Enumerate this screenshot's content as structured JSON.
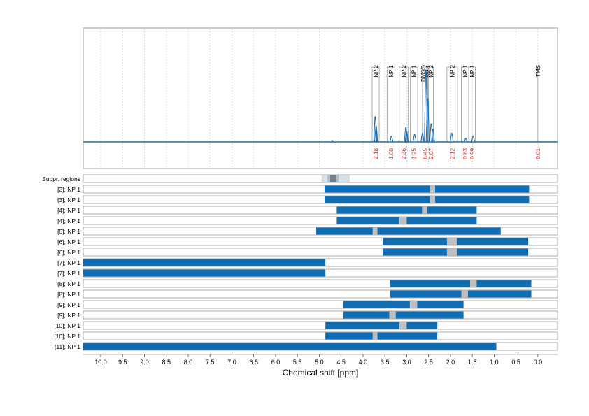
{
  "chart_data": {
    "type": "nmr-spectrum-with-range-bars",
    "xlabel": "Chemical shift [ppm]",
    "x_range": [
      10.4,
      -0.45
    ],
    "x_reversed": true,
    "x_ticks": [
      "10.0",
      "9.5",
      "9.0",
      "8.5",
      "8.0",
      "7.5",
      "7.0",
      "6.5",
      "6.0",
      "5.5",
      "5.0",
      "4.5",
      "4.0",
      "3.5",
      "3.0",
      "2.5",
      "2.0",
      "1.5",
      "1.0",
      "0.5",
      "0.0"
    ],
    "grid": "dotted vertical",
    "colors": {
      "spectrum": "#1f6fb4",
      "bar": "#0e6db3",
      "gap": "#c0c0c0",
      "integral": "#e0201b",
      "suppr": "#d6e0ea",
      "suppr_dark": "#6f7f8c"
    },
    "spectrum_peaks": [
      {
        "ppm": 3.72,
        "h": 0.35
      },
      {
        "ppm": 3.7,
        "h": 0.22
      },
      {
        "ppm": 3.35,
        "h": 0.08
      },
      {
        "ppm": 3.02,
        "h": 0.2
      },
      {
        "ppm": 3.0,
        "h": 0.14
      },
      {
        "ppm": 2.82,
        "h": 0.1
      },
      {
        "ppm": 2.64,
        "h": 0.12
      },
      {
        "ppm": 2.56,
        "h": 1.0
      },
      {
        "ppm": 2.52,
        "h": 0.6
      },
      {
        "ppm": 2.44,
        "h": 0.25
      },
      {
        "ppm": 2.4,
        "h": 0.18
      },
      {
        "ppm": 1.97,
        "h": 0.12
      },
      {
        "ppm": 1.65,
        "h": 0.05
      },
      {
        "ppm": 1.48,
        "h": 0.08
      },
      {
        "ppm": 4.7,
        "h": 0.02
      }
    ],
    "regions": [
      {
        "label": "NP 2",
        "from": 3.79,
        "to": 3.63,
        "integral": "2.18"
      },
      {
        "label": "NP 1",
        "from": 3.45,
        "to": 3.27,
        "integral": "1.00"
      },
      {
        "label": "NP 2",
        "from": 3.17,
        "to": 2.97,
        "integral": "2.36"
      },
      {
        "label": "NP 1",
        "from": 2.92,
        "to": 2.75,
        "integral": "1.25"
      },
      {
        "label": "DMSO",
        "from": 2.64,
        "to": 2.52,
        "integral": "6.45"
      },
      {
        "label": "NP 1",
        "from": 2.64,
        "to": 2.52,
        "integral": ""
      },
      {
        "label": "NP 2",
        "from": 2.5,
        "to": 2.39,
        "integral": "2.07"
      },
      {
        "label": "NP 2",
        "from": 2.08,
        "to": 1.84,
        "integral": "2.12"
      },
      {
        "label": "NP 1",
        "from": 1.75,
        "to": 1.58,
        "integral": "0.83"
      },
      {
        "label": "NP 1",
        "from": 1.58,
        "to": 1.43,
        "integral": "0.99"
      },
      {
        "label": "TMS",
        "from": 0.02,
        "to": -0.02,
        "integral": "0.01"
      }
    ],
    "suppr_regions": {
      "label": "Suppr. regions",
      "from": 4.95,
      "to": 4.3,
      "dark_from": 4.75,
      "dark_to": 4.62
    },
    "range_rows": [
      {
        "label": "[3]; NP 1",
        "start": 4.88,
        "end": 0.2,
        "gap": [
          2.47,
          2.35
        ]
      },
      {
        "label": "[3]; NP 1",
        "start": 4.88,
        "end": 0.2,
        "gap": [
          2.47,
          2.35
        ]
      },
      {
        "label": "[4]; NP 1",
        "start": 4.6,
        "end": 1.4,
        "gap": [
          2.65,
          2.53
        ]
      },
      {
        "label": "[4]; NP 1",
        "start": 4.6,
        "end": 1.4,
        "gap": [
          3.17,
          3.0
        ]
      },
      {
        "label": "[5]; NP 1",
        "start": 5.07,
        "end": 0.85,
        "gap": [
          3.78,
          3.67
        ]
      },
      {
        "label": "[6]; NP 1",
        "start": 3.55,
        "end": 0.22,
        "gap": [
          2.08,
          1.85
        ]
      },
      {
        "label": "[6]; NP 1",
        "start": 3.55,
        "end": 0.22,
        "gap": [
          2.08,
          1.85
        ]
      },
      {
        "label": "[7]; NP 1",
        "start": 10.4,
        "end": 4.86,
        "gap": null
      },
      {
        "label": "[7]; NP 1",
        "start": 10.4,
        "end": 4.86,
        "gap": null
      },
      {
        "label": "[8]; NP 1",
        "start": 3.38,
        "end": 0.15,
        "gap": [
          1.55,
          1.4
        ]
      },
      {
        "label": "[8]; NP 1",
        "start": 3.38,
        "end": 0.15,
        "gap": [
          1.75,
          1.6
        ]
      },
      {
        "label": "[9]; NP 1",
        "start": 4.45,
        "end": 1.7,
        "gap": [
          2.93,
          2.76
        ]
      },
      {
        "label": "[9]; NP 1",
        "start": 4.45,
        "end": 1.7,
        "gap": [
          3.4,
          3.25
        ]
      },
      {
        "label": "[10]; NP 1",
        "start": 4.86,
        "end": 2.3,
        "gap": [
          3.17,
          3.0
        ]
      },
      {
        "label": "[10]; NP 1",
        "start": 4.86,
        "end": 2.3,
        "gap": [
          3.78,
          3.67
        ]
      },
      {
        "label": "[11]; NP 1",
        "start": 10.4,
        "end": 0.95,
        "gap": null
      }
    ]
  }
}
